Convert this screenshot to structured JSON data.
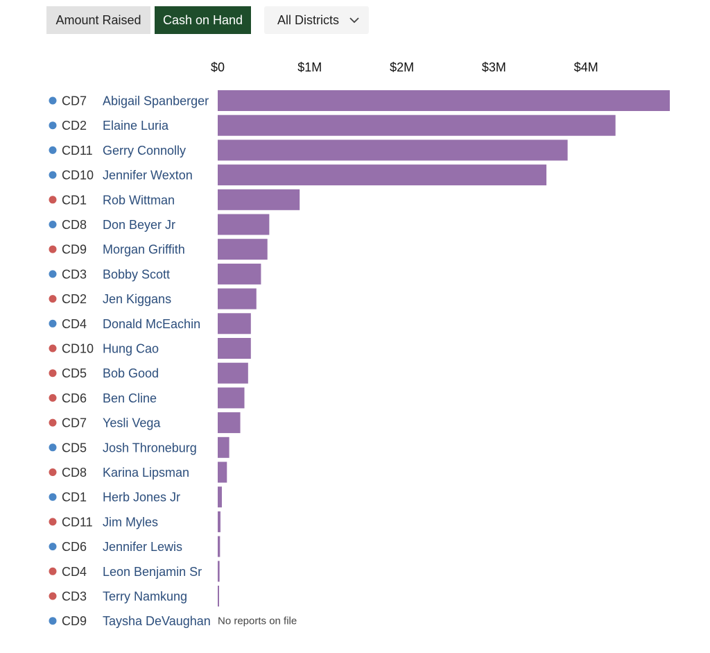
{
  "controls": {
    "amount_label": "Amount Raised",
    "cash_label": "Cash on Hand",
    "active": "Cash on Hand",
    "district_select": "All Districts",
    "chevron_icon": "chevron-down-icon"
  },
  "colors": {
    "bar": "#9670ab",
    "democrat": "#4a86c6",
    "republican": "#cc5a57",
    "active_button": "#1e4d2b",
    "inactive_button": "#e2e2e2",
    "candidate_text": "#2c4e7c"
  },
  "chart_data": {
    "type": "bar",
    "orientation": "horizontal",
    "xlim": [
      0,
      4900000
    ],
    "ticks": [
      {
        "value": 0,
        "label": "$0"
      },
      {
        "value": 1000000,
        "label": "$1M"
      },
      {
        "value": 2000000,
        "label": "$2M"
      },
      {
        "value": 3000000,
        "label": "$3M"
      },
      {
        "value": 4000000,
        "label": "$4M"
      }
    ],
    "rows": [
      {
        "district": "CD7",
        "candidate": "Abigail Spanberger",
        "party": "D",
        "value": 4910000
      },
      {
        "district": "CD2",
        "candidate": "Elaine Luria",
        "party": "D",
        "value": 4320000
      },
      {
        "district": "CD11",
        "candidate": "Gerry Connolly",
        "party": "D",
        "value": 3800000
      },
      {
        "district": "CD10",
        "candidate": "Jennifer Wexton",
        "party": "D",
        "value": 3570000
      },
      {
        "district": "CD1",
        "candidate": "Rob Wittman",
        "party": "R",
        "value": 890000
      },
      {
        "district": "CD8",
        "candidate": "Don Beyer Jr",
        "party": "D",
        "value": 560000
      },
      {
        "district": "CD9",
        "candidate": "Morgan Griffith",
        "party": "R",
        "value": 540000
      },
      {
        "district": "CD3",
        "candidate": "Bobby Scott",
        "party": "D",
        "value": 470000
      },
      {
        "district": "CD2",
        "candidate": "Jen Kiggans",
        "party": "R",
        "value": 420000
      },
      {
        "district": "CD4",
        "candidate": "Donald McEachin",
        "party": "D",
        "value": 360000
      },
      {
        "district": "CD10",
        "candidate": "Hung Cao",
        "party": "R",
        "value": 360000
      },
      {
        "district": "CD5",
        "candidate": "Bob Good",
        "party": "R",
        "value": 330000
      },
      {
        "district": "CD6",
        "candidate": "Ben Cline",
        "party": "R",
        "value": 290000
      },
      {
        "district": "CD7",
        "candidate": "Yesli Vega",
        "party": "R",
        "value": 245000
      },
      {
        "district": "CD5",
        "candidate": "Josh Throneburg",
        "party": "D",
        "value": 125000
      },
      {
        "district": "CD8",
        "candidate": "Karina Lipsman",
        "party": "R",
        "value": 100000
      },
      {
        "district": "CD1",
        "candidate": "Herb Jones Jr",
        "party": "D",
        "value": 45000
      },
      {
        "district": "CD11",
        "candidate": "Jim Myles",
        "party": "R",
        "value": 30000
      },
      {
        "district": "CD6",
        "candidate": "Jennifer Lewis",
        "party": "D",
        "value": 25000
      },
      {
        "district": "CD4",
        "candidate": "Leon Benjamin Sr",
        "party": "R",
        "value": 20000
      },
      {
        "district": "CD3",
        "candidate": "Terry Namkung",
        "party": "R",
        "value": 15000
      },
      {
        "district": "CD9",
        "candidate": "Taysha DeVaughan",
        "party": "D",
        "value": null,
        "note": "No reports on file"
      }
    ]
  }
}
